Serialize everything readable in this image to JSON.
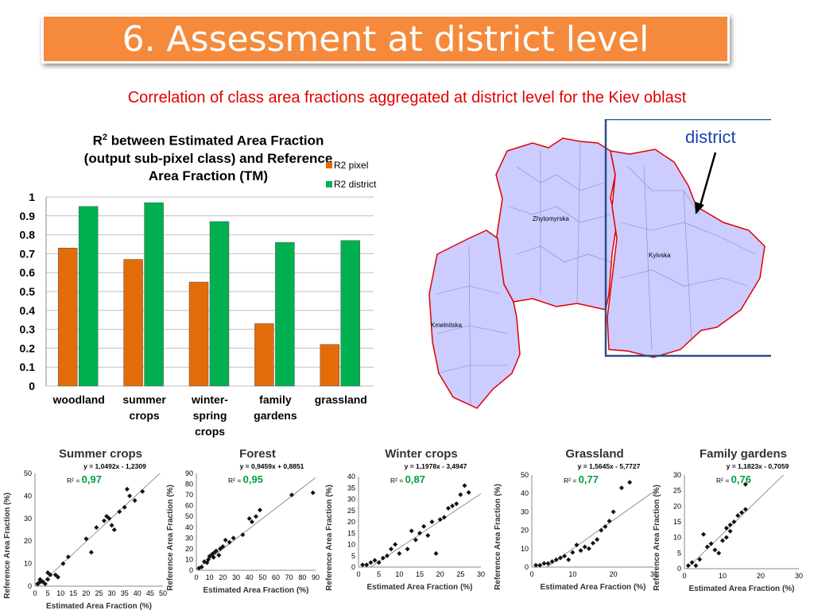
{
  "slide": {
    "title": "6. Assessment at district level",
    "subtitle": "Correlation of class area fractions aggregated at district level for the Kiev oblast",
    "district_label": "district",
    "regions": [
      "Zhytomyrska",
      "Kyivska",
      "Kmelnitska"
    ]
  },
  "bar_chart_title": {
    "line1_prefix": "R",
    "line1_sup": "2",
    "line1_rest": " between Estimated Area Fraction",
    "line2": "(output sub-pixel class) and Reference",
    "line3": "Area Fraction (TM)"
  },
  "colors": {
    "pixel": "#e36c0a",
    "district": "#00b050",
    "banner": "#f58a3c",
    "map_fill": "#ccccff",
    "map_border": "#e00000"
  },
  "chart_data": [
    {
      "type": "bar",
      "categories": [
        [
          "woodland"
        ],
        [
          "summer",
          "crops"
        ],
        [
          "winter-",
          "spring",
          "crops"
        ],
        [
          "family",
          "gardens"
        ],
        [
          "grassland"
        ]
      ],
      "series": [
        {
          "name": "R2 pixel",
          "values": [
            0.73,
            0.67,
            0.55,
            0.33,
            0.22
          ]
        },
        {
          "name": "R2 district",
          "values": [
            0.95,
            0.97,
            0.87,
            0.76,
            0.77
          ]
        }
      ],
      "ylim": [
        0,
        1
      ],
      "yticks": [
        "0",
        "0.1",
        "0.2",
        "0.3",
        "0.4",
        "0.5",
        "0.6",
        "0.7",
        "0.8",
        "0.9",
        "1"
      ],
      "legend": "top-right",
      "grid": true
    },
    {
      "type": "scatter",
      "title": "Summer crops",
      "equation": "y = 1,0492x - 1,2309",
      "r2_label": "R² = ",
      "r2": "0,97",
      "xlabel": "Estimated Area Fraction (%)",
      "ylabel": "Reference Area Fraction (%)",
      "xlim": [
        0,
        50
      ],
      "ylim": [
        0,
        50
      ],
      "xticks": [
        "0",
        "5",
        "10",
        "15",
        "20",
        "25",
        "30",
        "35",
        "40",
        "45",
        "50"
      ],
      "yticks": [
        "0",
        "10",
        "20",
        "30",
        "40",
        "50"
      ],
      "trend": {
        "slope": 1.0492,
        "intercept": -1.2309
      },
      "points": [
        [
          1,
          1
        ],
        [
          2,
          2
        ],
        [
          2,
          3
        ],
        [
          3,
          2
        ],
        [
          4,
          1
        ],
        [
          5,
          6
        ],
        [
          5,
          3
        ],
        [
          6,
          5
        ],
        [
          8,
          5
        ],
        [
          9,
          4
        ],
        [
          11,
          10
        ],
        [
          13,
          13
        ],
        [
          20,
          21
        ],
        [
          22,
          15
        ],
        [
          24,
          26
        ],
        [
          27,
          29
        ],
        [
          28,
          31
        ],
        [
          29,
          30
        ],
        [
          30,
          27
        ],
        [
          31,
          25
        ],
        [
          33,
          33
        ],
        [
          35,
          35
        ],
        [
          36,
          43
        ],
        [
          37,
          40
        ],
        [
          39,
          38
        ],
        [
          42,
          42
        ]
      ]
    },
    {
      "type": "scatter",
      "title": "Forest",
      "equation": "y = 0,9459x + 0,8851",
      "r2_label": "R² = ",
      "r2": "0,95",
      "xlabel": "Estimated Area Fraction (%)",
      "ylabel": "Reference Area Fraction (%)",
      "xlim": [
        0,
        90
      ],
      "ylim": [
        0,
        90
      ],
      "xticks": [
        "0",
        "10",
        "20",
        "30",
        "40",
        "50",
        "60",
        "70",
        "80",
        "90"
      ],
      "yticks": [
        "0",
        "10",
        "20",
        "30",
        "40",
        "50",
        "60",
        "70",
        "80",
        "90"
      ],
      "trend": {
        "slope": 0.9459,
        "intercept": 0.8851
      },
      "points": [
        [
          2,
          2
        ],
        [
          4,
          3
        ],
        [
          6,
          8
        ],
        [
          8,
          7
        ],
        [
          9,
          10
        ],
        [
          10,
          13
        ],
        [
          12,
          15
        ],
        [
          13,
          12
        ],
        [
          14,
          17
        ],
        [
          15,
          18
        ],
        [
          17,
          14
        ],
        [
          18,
          20
        ],
        [
          20,
          22
        ],
        [
          22,
          28
        ],
        [
          25,
          26
        ],
        [
          28,
          30
        ],
        [
          35,
          33
        ],
        [
          40,
          48
        ],
        [
          42,
          45
        ],
        [
          45,
          50
        ],
        [
          48,
          56
        ],
        [
          72,
          70
        ],
        [
          88,
          72
        ]
      ]
    },
    {
      "type": "scatter",
      "title": "Winter crops",
      "equation": "y = 1,1978x - 3,4947",
      "r2_label": "R² = ",
      "r2": "0,87",
      "xlabel": "Estimated Area Fraction (%)",
      "ylabel": "Reference Area Fraction (%)",
      "xlim": [
        0,
        30
      ],
      "ylim": [
        0,
        40
      ],
      "xticks": [
        "0",
        "5",
        "10",
        "15",
        "20",
        "25",
        "30"
      ],
      "yticks": [
        "0",
        "5",
        "10",
        "15",
        "20",
        "25",
        "30",
        "35",
        "40"
      ],
      "trend": {
        "slope": 1.1978,
        "intercept": -3.4947
      },
      "points": [
        [
          1,
          1
        ],
        [
          2,
          1
        ],
        [
          3,
          2
        ],
        [
          4,
          3
        ],
        [
          5,
          2
        ],
        [
          6,
          4
        ],
        [
          7,
          5
        ],
        [
          8,
          8
        ],
        [
          9,
          10
        ],
        [
          10,
          6
        ],
        [
          12,
          8
        ],
        [
          13,
          16
        ],
        [
          14,
          12
        ],
        [
          15,
          15
        ],
        [
          16,
          18
        ],
        [
          17,
          14
        ],
        [
          18,
          20
        ],
        [
          19,
          6
        ],
        [
          20,
          21
        ],
        [
          21,
          22
        ],
        [
          22,
          26
        ],
        [
          23,
          27
        ],
        [
          24,
          28
        ],
        [
          25,
          32
        ],
        [
          26,
          36
        ],
        [
          27,
          33
        ]
      ]
    },
    {
      "type": "scatter",
      "title": "Grassland",
      "equation": "y = 1,5645x - 5,7727",
      "r2_label": "R² = ",
      "r2": "0,77",
      "xlabel": "Estimated Area Fraction (%)",
      "ylabel": "Reference Area Fraction (%)",
      "xlim": [
        0,
        30
      ],
      "ylim": [
        0,
        50
      ],
      "xticks": [
        "0",
        "10",
        "20",
        "30"
      ],
      "yticks": [
        "0",
        "10",
        "20",
        "30",
        "40",
        "50"
      ],
      "trend": {
        "slope": 1.5645,
        "intercept": -5.7727
      },
      "points": [
        [
          1,
          1
        ],
        [
          2,
          1
        ],
        [
          3,
          2
        ],
        [
          4,
          2
        ],
        [
          5,
          3
        ],
        [
          6,
          4
        ],
        [
          7,
          5
        ],
        [
          8,
          6
        ],
        [
          9,
          4
        ],
        [
          10,
          8
        ],
        [
          11,
          12
        ],
        [
          12,
          9
        ],
        [
          13,
          11
        ],
        [
          14,
          10
        ],
        [
          15,
          13
        ],
        [
          16,
          15
        ],
        [
          17,
          20
        ],
        [
          18,
          22
        ],
        [
          19,
          25
        ],
        [
          20,
          30
        ],
        [
          22,
          43
        ],
        [
          24,
          46
        ]
      ]
    },
    {
      "type": "scatter",
      "title": "Family gardens",
      "equation": "y = 1,1823x - 0,7059",
      "r2_label": "R² = ",
      "r2": "0,76",
      "xlabel": "Estimated Area Fraction (%)",
      "ylabel": "Reference Area Fraction (%)",
      "xlim": [
        0,
        30
      ],
      "ylim": [
        0,
        30
      ],
      "xticks": [
        "0",
        "10",
        "20",
        "30"
      ],
      "yticks": [
        "0",
        "5",
        "10",
        "15",
        "20",
        "25",
        "30"
      ],
      "trend": {
        "slope": 1.1823,
        "intercept": -0.7059
      },
      "points": [
        [
          1,
          1
        ],
        [
          2,
          2
        ],
        [
          3,
          1
        ],
        [
          4,
          3
        ],
        [
          5,
          11
        ],
        [
          6,
          7
        ],
        [
          7,
          8
        ],
        [
          8,
          6
        ],
        [
          9,
          5
        ],
        [
          10,
          9
        ],
        [
          11,
          10
        ],
        [
          11,
          13
        ],
        [
          12,
          14
        ],
        [
          12,
          12
        ],
        [
          13,
          15
        ],
        [
          14,
          17
        ],
        [
          15,
          18
        ],
        [
          16,
          19
        ],
        [
          16,
          27
        ]
      ]
    }
  ]
}
